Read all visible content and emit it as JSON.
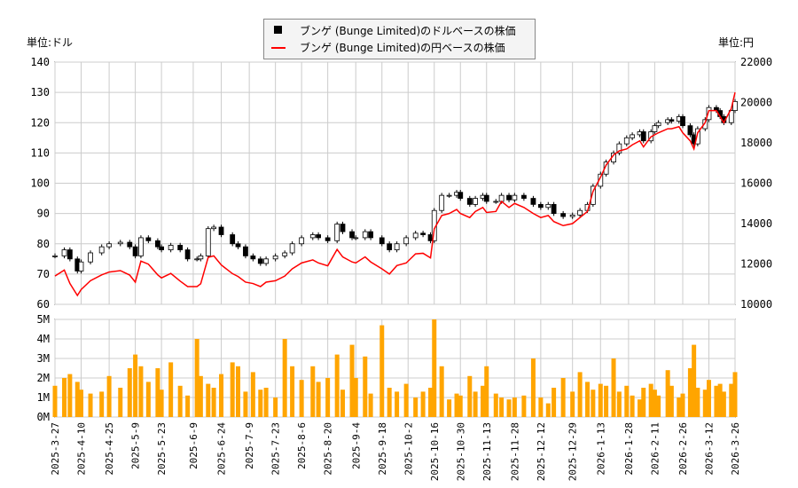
{
  "chart_data": {
    "type": "candlestick+line+bar",
    "legend": [
      "ブンゲ (Bunge Limited)のドルベースの株価",
      "ブンゲ (Bunge Limited)の円ベースの株価"
    ],
    "legend_placement": "top-center",
    "left_unit": "単位:ドル",
    "right_unit": "単位:円",
    "ylim_usd": [
      60,
      140
    ],
    "yticks_usd": [
      60,
      70,
      80,
      90,
      100,
      110,
      120,
      130,
      140
    ],
    "ylim_jpy": [
      10000,
      22000
    ],
    "yticks_jpy": [
      10000,
      12000,
      14000,
      16000,
      18000,
      20000,
      22000
    ],
    "ylim_volume": [
      0,
      5
    ],
    "yticks_volume": [
      "0M",
      "1M",
      "2M",
      "3M",
      "4M",
      "5M"
    ],
    "grid": true,
    "xticks": [
      "2025-3-27",
      "2025-4-10",
      "2025-4-25",
      "2025-5-9",
      "2025-5-23",
      "2025-6-9",
      "2025-6-24",
      "2025-7-9",
      "2025-7-23",
      "2025-8-6",
      "2025-8-20",
      "2025-9-4",
      "2025-9-18",
      "2025-10-2",
      "2025-10-16",
      "2025-10-30",
      "2025-11-13",
      "2025-11-28",
      "2025-12-12",
      "2025-12-29",
      "2026-1-13",
      "2026-1-28",
      "2026-2-11",
      "2026-2-26",
      "2026-3-12",
      "2026-3-26"
    ],
    "colors": {
      "usd": "#000000",
      "jpy": "#ff0000",
      "volume": "#ffa500"
    },
    "dates": [
      "2025-03-27",
      "2025-04-01",
      "2025-04-04",
      "2025-04-08",
      "2025-04-10",
      "2025-04-15",
      "2025-04-21",
      "2025-04-25",
      "2025-05-01",
      "2025-05-06",
      "2025-05-09",
      "2025-05-12",
      "2025-05-16",
      "2025-05-21",
      "2025-05-23",
      "2025-05-28",
      "2025-06-02",
      "2025-06-06",
      "2025-06-11",
      "2025-06-13",
      "2025-06-17",
      "2025-06-20",
      "2025-06-24",
      "2025-06-30",
      "2025-07-03",
      "2025-07-07",
      "2025-07-11",
      "2025-07-15",
      "2025-07-18",
      "2025-07-23",
      "2025-07-28",
      "2025-08-01",
      "2025-08-06",
      "2025-08-12",
      "2025-08-15",
      "2025-08-20",
      "2025-08-25",
      "2025-08-28",
      "2025-09-02",
      "2025-09-04",
      "2025-09-09",
      "2025-09-12",
      "2025-09-18",
      "2025-09-22",
      "2025-09-26",
      "2025-10-01",
      "2025-10-06",
      "2025-10-10",
      "2025-10-14",
      "2025-10-16",
      "2025-10-20",
      "2025-10-24",
      "2025-10-28",
      "2025-10-30",
      "2025-11-04",
      "2025-11-07",
      "2025-11-11",
      "2025-11-13",
      "2025-11-18",
      "2025-11-21",
      "2025-11-25",
      "2025-11-28",
      "2025-12-03",
      "2025-12-08",
      "2025-12-12",
      "2025-12-16",
      "2025-12-19",
      "2025-12-24",
      "2025-12-29",
      "2026-01-02",
      "2026-01-06",
      "2026-01-09",
      "2026-01-13",
      "2026-01-16",
      "2026-01-20",
      "2026-01-23",
      "2026-01-27",
      "2026-01-30",
      "2026-02-03",
      "2026-02-05",
      "2026-02-09",
      "2026-02-11",
      "2026-02-13",
      "2026-02-18",
      "2026-02-20",
      "2026-02-24",
      "2026-02-26",
      "2026-03-02",
      "2026-03-04",
      "2026-03-06",
      "2026-03-10",
      "2026-03-12",
      "2026-03-16",
      "2026-03-18",
      "2026-03-20",
      "2026-03-24",
      "2026-03-26"
    ],
    "close_usd": [
      76,
      78,
      75,
      71,
      74,
      77,
      79,
      80,
      80.5,
      79,
      76,
      82,
      81,
      79,
      78,
      79.5,
      78,
      75,
      75,
      76,
      85,
      85.5,
      83,
      80,
      79,
      76,
      75,
      73.5,
      75,
      76,
      77,
      80,
      82,
      83,
      82,
      81,
      86.5,
      84,
      82,
      82,
      84,
      82,
      80,
      78,
      80,
      82,
      83.5,
      83,
      81,
      91,
      96,
      96,
      97,
      95,
      93,
      95,
      96,
      94,
      94,
      96,
      94.5,
      96,
      95,
      93,
      92,
      93,
      90,
      89,
      89.5,
      91,
      93,
      99,
      103,
      107,
      110,
      113,
      115,
      116,
      117,
      114,
      117,
      119,
      120,
      121,
      120.5,
      122,
      119,
      116,
      113,
      118,
      121,
      125,
      124,
      122,
      120,
      124,
      127
    ],
    "close_jpy": [
      11400,
      11700,
      11030,
      10440,
      10730,
      11170,
      11460,
      11600,
      11670,
      11450,
      11100,
      12140,
      11990,
      11460,
      11310,
      11530,
      11150,
      10880,
      10880,
      11020,
      12330,
      12400,
      11950,
      11520,
      11380,
      11100,
      11030,
      10880,
      11100,
      11170,
      11400,
      11760,
      12050,
      12200,
      12050,
      11910,
      12720,
      12350,
      12100,
      12050,
      12350,
      12100,
      11760,
      11500,
      11920,
      12050,
      12500,
      12530,
      12300,
      13740,
      14400,
      14500,
      14700,
      14500,
      14300,
      14600,
      14800,
      14550,
      14600,
      15100,
      14800,
      15000,
      14800,
      14500,
      14300,
      14400,
      14100,
      13900,
      14000,
      14300,
      14600,
      15600,
      16300,
      16900,
      17400,
      17600,
      17700,
      17900,
      18100,
      17800,
      18300,
      18400,
      18500,
      18700,
      18700,
      18800,
      18500,
      18100,
      17700,
      18500,
      19000,
      19600,
      19600,
      19300,
      19000,
      19700,
      20500
    ],
    "volume_m": [
      1.6,
      2.0,
      2.2,
      1.8,
      1.4,
      1.2,
      1.3,
      2.1,
      1.5,
      2.5,
      3.2,
      2.6,
      1.8,
      2.5,
      1.4,
      2.8,
      1.6,
      1.1,
      4.0,
      2.1,
      1.7,
      1.5,
      2.2,
      2.8,
      2.6,
      1.3,
      2.3,
      1.4,
      1.5,
      1.0,
      4.0,
      2.6,
      1.9,
      2.6,
      1.8,
      2.0,
      3.2,
      1.4,
      3.7,
      2.0,
      3.1,
      1.2,
      4.7,
      1.5,
      1.3,
      1.7,
      1.0,
      1.3,
      1.5,
      5.0,
      2.6,
      0.9,
      1.2,
      1.1,
      2.1,
      1.3,
      1.6,
      2.6,
      1.2,
      1.0,
      0.9,
      1.0,
      1.1,
      3.0,
      1.0,
      0.7,
      1.5,
      2.0,
      1.3,
      2.3,
      1.8,
      1.4,
      1.7,
      1.6,
      3.0,
      1.3,
      1.6,
      1.1,
      0.9,
      1.5,
      1.7,
      1.4,
      1.1,
      2.4,
      1.6,
      1.0,
      1.2,
      2.5,
      3.7,
      1.5,
      1.4,
      1.9,
      1.6,
      1.7,
      1.3,
      1.7,
      2.3
    ]
  }
}
